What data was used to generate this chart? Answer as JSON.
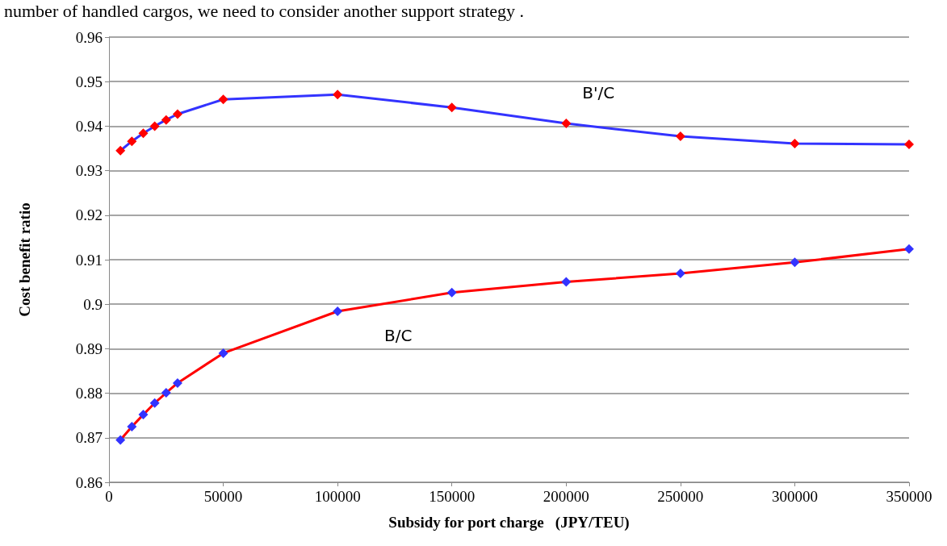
{
  "chart_data": {
    "type": "line",
    "xlabel": "Subsidy for port charge   (JPY/TEU)",
    "ylabel": "Cost benefit ratio",
    "x": [
      5000,
      10000,
      15000,
      20000,
      25000,
      30000,
      50000,
      100000,
      150000,
      200000,
      250000,
      300000,
      350000
    ],
    "series": [
      {
        "name": "B'/C",
        "color": "#3333ff",
        "colors": [
          "#ff0000",
          "#ff0000",
          "#ff0000",
          "#ff0000",
          "#ff0000",
          "#ff0000",
          "#ff0000",
          "#ff0000",
          "#ff0000",
          "#ff0000",
          "#ff0000",
          "#ff0000",
          "#ff0000"
        ],
        "values": [
          0.9345,
          0.9366,
          0.9384,
          0.94,
          0.9414,
          0.9427,
          0.946,
          0.9471,
          0.9442,
          0.9406,
          0.9377,
          0.9361,
          0.9359
        ]
      },
      {
        "name": "B/C",
        "color": "#ff0000",
        "colors": [
          "#3333ff",
          "#3333ff",
          "#3333ff",
          "#3333ff",
          "#3333ff",
          "#3333ff",
          "#3333ff",
          "#3333ff",
          "#3333ff",
          "#3333ff",
          "#3333ff",
          "#3333ff",
          "#3333ff"
        ],
        "values": [
          0.8695,
          0.8725,
          0.8752,
          0.8778,
          0.8801,
          0.8823,
          0.889,
          0.8984,
          0.9026,
          0.905,
          0.9069,
          0.9094,
          0.9124
        ]
      }
    ],
    "xlim": [
      0,
      350000
    ],
    "xticks": [
      0,
      50000,
      100000,
      150000,
      200000,
      250000,
      300000,
      350000
    ],
    "ylim": [
      0.86,
      0.96
    ],
    "yticks": [
      0.86,
      0.87,
      0.88,
      0.89,
      0.9,
      0.91,
      0.92,
      0.93,
      0.94,
      0.95,
      0.96
    ],
    "grid": "y",
    "marker": "diamond",
    "line_style": "solid",
    "legend": false,
    "annotations": [
      "number of handled cargos, we need to consider another support strategy ."
    ]
  }
}
